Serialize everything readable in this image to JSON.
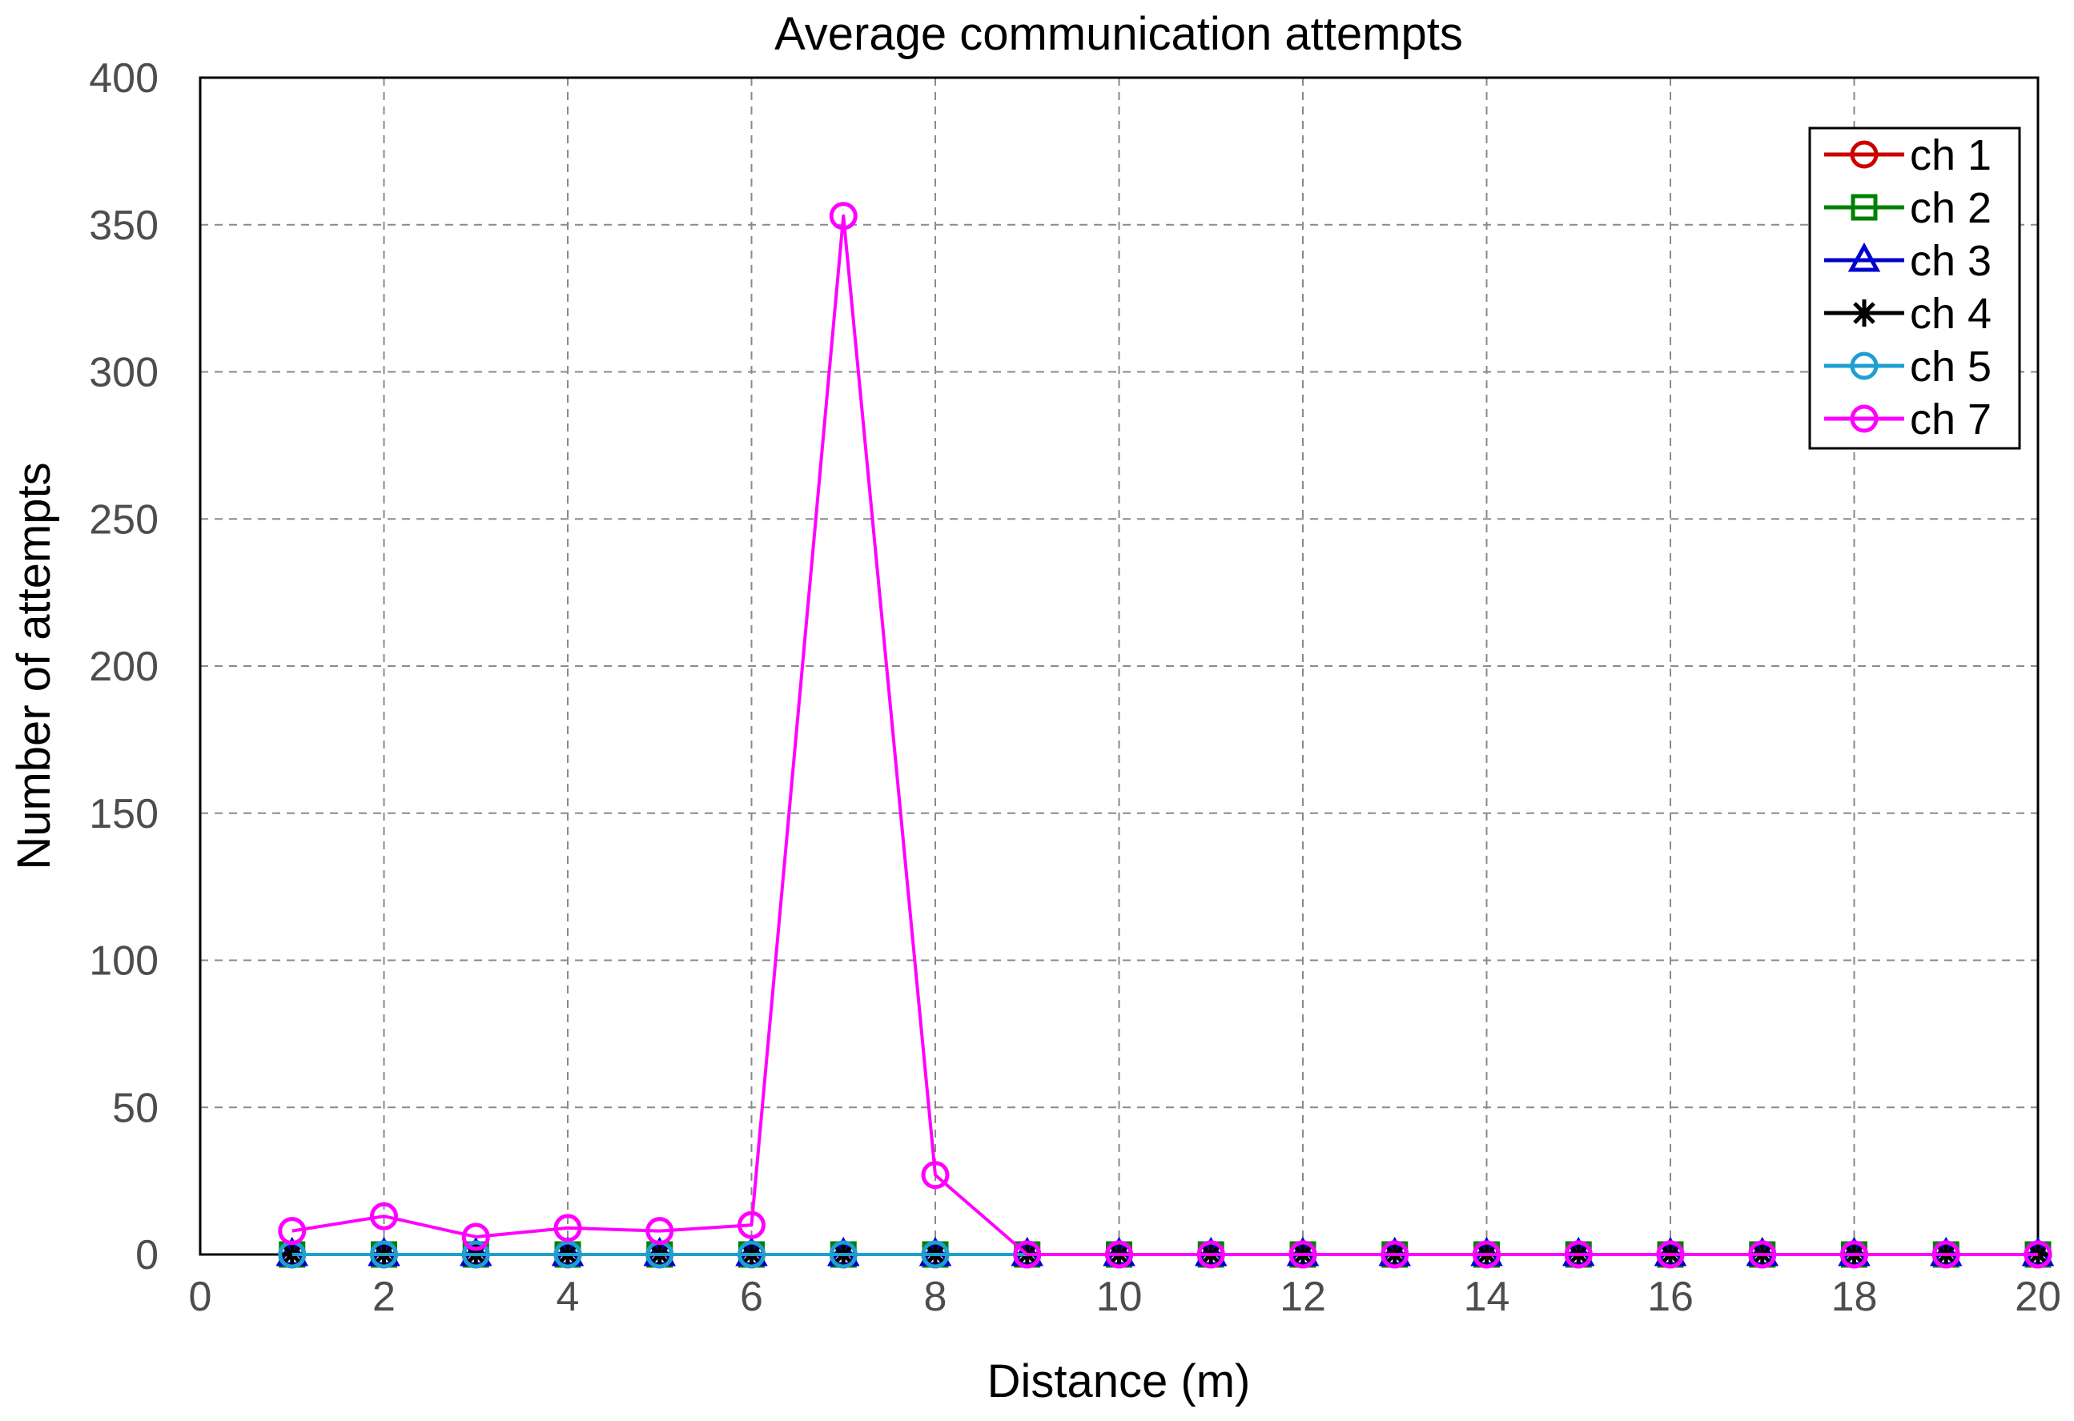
{
  "chart_data": {
    "type": "line",
    "title": "Average communication attempts",
    "xlabel": "Distance (m)",
    "ylabel": "Number of attempts",
    "xlim": [
      0,
      20
    ],
    "ylim": [
      0,
      400
    ],
    "xticks": [
      0,
      2,
      4,
      6,
      8,
      10,
      12,
      14,
      16,
      18,
      20
    ],
    "yticks": [
      0,
      50,
      100,
      150,
      200,
      250,
      300,
      350,
      400
    ],
    "xtick_labels": [
      "0",
      "2",
      "4",
      "6",
      "8",
      "10",
      "12",
      "14",
      "16",
      "18",
      "20"
    ],
    "ytick_labels": [
      "0",
      "50",
      "100",
      "150",
      "200",
      "250",
      "300",
      "350",
      "400"
    ],
    "grid": true,
    "legend_position": "top-right",
    "x": [
      1,
      2,
      3,
      4,
      5,
      6,
      7,
      8,
      9,
      10,
      11,
      12,
      13,
      14,
      15,
      16,
      17,
      18,
      19,
      20
    ],
    "series": [
      {
        "name": "ch 1",
        "color": "#cc0000",
        "marker": "circle",
        "values": [
          0,
          0,
          0,
          0,
          0,
          0,
          0,
          0,
          0,
          0,
          0,
          0,
          0,
          0,
          0,
          0,
          0,
          0,
          0,
          0
        ]
      },
      {
        "name": "ch 2",
        "color": "#008000",
        "marker": "square",
        "values": [
          0,
          0,
          0,
          0,
          0,
          0,
          0,
          0,
          0,
          0,
          0,
          0,
          0,
          0,
          0,
          0,
          0,
          0,
          0,
          0
        ]
      },
      {
        "name": "ch 3",
        "color": "#0000cc",
        "marker": "triangle",
        "values": [
          0,
          0,
          0,
          0,
          0,
          0,
          0,
          0,
          0,
          0,
          0,
          0,
          0,
          0,
          0,
          0,
          0,
          0,
          0,
          0
        ]
      },
      {
        "name": "ch 4",
        "color": "#000000",
        "marker": "asterisk",
        "values": [
          0,
          0,
          0,
          0,
          0,
          0,
          0,
          0,
          0,
          0,
          0,
          0,
          0,
          0,
          0,
          0,
          0,
          0,
          0,
          0
        ]
      },
      {
        "name": "ch 5",
        "color": "#1f9fd0",
        "marker": "circle",
        "values": [
          0,
          0,
          0,
          0,
          0,
          0,
          0,
          0,
          0,
          0,
          0,
          0,
          0,
          0,
          0,
          0,
          0,
          0,
          0,
          0
        ]
      },
      {
        "name": "ch 7",
        "color": "#ff00ff",
        "marker": "circle",
        "values": [
          8,
          13,
          6,
          9,
          8,
          10,
          353,
          27,
          0,
          0,
          0,
          0,
          0,
          0,
          0,
          0,
          0,
          0,
          0,
          0
        ]
      }
    ]
  }
}
